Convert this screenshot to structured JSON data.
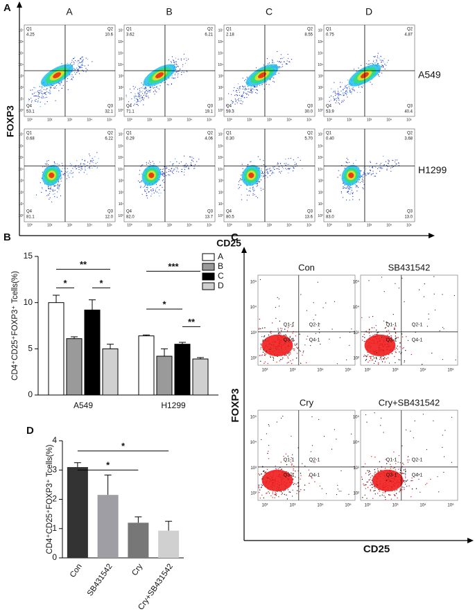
{
  "panel_labels": [
    "A",
    "B",
    "C",
    "D"
  ],
  "flow_a": {
    "columns": [
      "A",
      "B",
      "C",
      "D"
    ],
    "x_label": "CD25",
    "y_label": "FOXP3",
    "quadrant_names": [
      "Q1",
      "Q2",
      "Q4",
      "Q3"
    ],
    "xticks": [
      "10⁰",
      "10²",
      "10³",
      "10⁴",
      "10⁵"
    ],
    "yticks": [
      "10⁰",
      "10¹",
      "10²",
      "10³",
      "10⁴",
      "10⁵",
      "10⁶",
      "10⁷"
    ],
    "rows": [
      {
        "name": "A549",
        "plots": [
          [
            "4.25",
            "10.6",
            "53.1",
            "32.1"
          ],
          [
            "3.62",
            "6.21",
            "71.1",
            "19.1"
          ],
          [
            "2.18",
            "8.55",
            "59.3",
            "30.0"
          ],
          [
            "0.75",
            "4.87",
            "53.9",
            "40.4"
          ]
        ]
      },
      {
        "name": "H1299",
        "plots": [
          [
            "0.68",
            "6.22",
            "81.1",
            "12.0"
          ],
          [
            "0.29",
            "4.06",
            "82.0",
            "13.7"
          ],
          [
            "0.30",
            "5.70",
            "80.5",
            "13.6"
          ],
          [
            "0.40",
            "3.68",
            "83.0",
            "13.0"
          ]
        ]
      }
    ]
  },
  "flow_c": {
    "titles": [
      "Con",
      "SB431542",
      "Cry",
      "Cry+SB431542"
    ],
    "quadrant_labels": [
      "Q1-1",
      "Q2-1",
      "Q3-1",
      "Q4-1"
    ],
    "ticks": [
      "10²",
      "10³",
      "10⁴",
      "10⁵"
    ],
    "x_label": "CD25",
    "y_label": "FOXP3"
  },
  "chart_data": [
    {
      "type": "grouped_bar",
      "ylabel": "CD4⁺CD25⁺FOXP3⁺ Tcells(%)",
      "categories": [
        "A549",
        "H1299"
      ],
      "series": [
        {
          "name": "A",
          "color": "#ffffff",
          "values": [
            10.0,
            6.4
          ],
          "errors": [
            0.8,
            0.1
          ]
        },
        {
          "name": "B",
          "color": "#9a9a9a",
          "values": [
            6.1,
            4.2
          ],
          "errors": [
            0.2,
            0.8
          ]
        },
        {
          "name": "C",
          "color": "#000000",
          "values": [
            9.2,
            5.5
          ],
          "errors": [
            1.1,
            0.2
          ]
        },
        {
          "name": "D",
          "color": "#d0d0d0",
          "values": [
            5.0,
            3.9
          ],
          "errors": [
            0.5,
            0.15
          ]
        }
      ],
      "ylim": [
        0,
        15
      ],
      "yticks": [
        0,
        5,
        10,
        15
      ],
      "annotations": [
        "*",
        "*",
        "**",
        "***",
        "*",
        "**"
      ]
    },
    {
      "type": "bar",
      "ylabel": "CD4⁺CD25⁺FOXP3⁺ Tcells(%)",
      "categories": [
        "Con",
        "SB431542",
        "Cry",
        "Cry+SB431542"
      ],
      "values": [
        3.1,
        2.15,
        1.2,
        0.93
      ],
      "errors": [
        0.15,
        0.68,
        0.2,
        0.32
      ],
      "colors": [
        "#333333",
        "#9e9ea4",
        "#777777",
        "#d0d0d0"
      ],
      "ylim": [
        0,
        4
      ],
      "yticks": [
        0,
        1,
        2,
        3,
        4
      ],
      "annotations": [
        "*",
        "*"
      ]
    }
  ]
}
